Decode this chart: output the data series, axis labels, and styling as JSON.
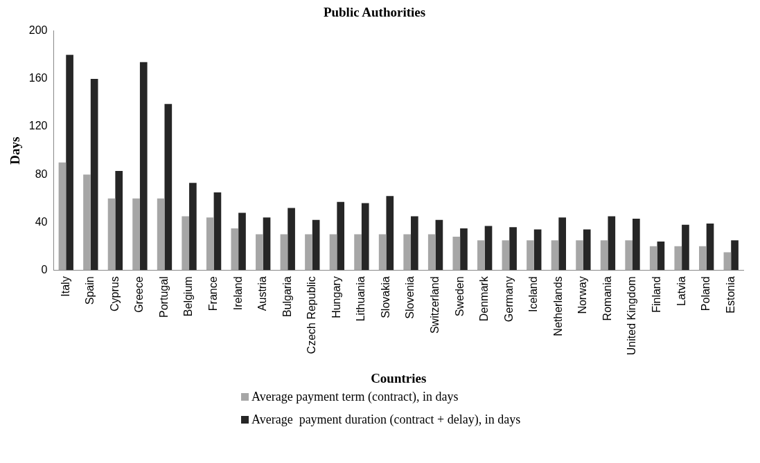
{
  "chart_data": {
    "type": "bar",
    "title": "Public Authorities",
    "xlabel": "Countries",
    "ylabel": "Days",
    "categories": [
      "Italy",
      "Spain",
      "Cyprus",
      "Greece",
      "Portugal",
      "Belgium",
      "France",
      "Ireland",
      "Austria",
      "Bulgaria",
      "Czech Republic",
      "Hungary",
      "Lithuania",
      "Slovakia",
      "Slovenia",
      "Switzerland",
      "Sweden",
      "Denmark",
      "Germany",
      "Iceland",
      "Netherlands",
      "Norway",
      "Romania",
      "United Kingdom",
      "Finland",
      "Latvia",
      "Poland",
      "Estonia"
    ],
    "series": [
      {
        "name": "Average payment term (contract), in days",
        "color": "#a6a6a6",
        "values": [
          90,
          80,
          60,
          60,
          60,
          45,
          44,
          35,
          30,
          30,
          30,
          30,
          30,
          30,
          30,
          30,
          28,
          25,
          25,
          25,
          25,
          25,
          25,
          25,
          20,
          20,
          20,
          15
        ]
      },
      {
        "name": "Average  payment duration (contract + delay), in days",
        "color": "#262626",
        "values": [
          180,
          160,
          83,
          174,
          139,
          73,
          65,
          48,
          44,
          52,
          42,
          57,
          56,
          62,
          45,
          42,
          35,
          37,
          36,
          34,
          44,
          34,
          45,
          43,
          24,
          38,
          39,
          25
        ]
      }
    ],
    "ylim": [
      0,
      200
    ],
    "yticks": [
      0,
      40,
      80,
      120,
      160,
      200
    ],
    "grid": false,
    "legend": "bottom"
  }
}
